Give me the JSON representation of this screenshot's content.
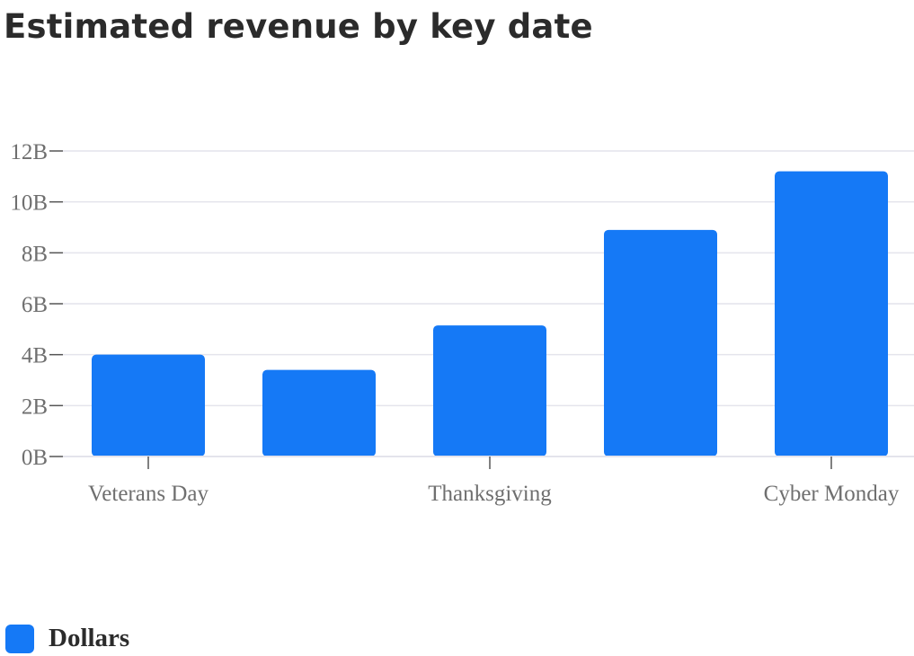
{
  "colors": {
    "bar": "#1579f6",
    "grid": "#e4e4ec",
    "axis": "#555555",
    "text": "#6f6f6f",
    "title": "#2b2b2b"
  },
  "chart_data": {
    "type": "bar",
    "title": "Estimated revenue by key date",
    "xlabel": "",
    "ylabel": "",
    "categories": [
      "Veterans Day",
      "",
      "Thanksgiving",
      "",
      "Cyber Monday"
    ],
    "series": [
      {
        "name": "Dollars",
        "values": [
          4.0,
          3.4,
          5.15,
          8.9,
          11.2
        ]
      }
    ],
    "value_unit": "B",
    "yticks": [
      "0B",
      "2B",
      "4B",
      "6B",
      "8B",
      "10B",
      "12B"
    ],
    "ylim": [
      0,
      12
    ],
    "grid": true,
    "legend_position": "bottom-left"
  }
}
